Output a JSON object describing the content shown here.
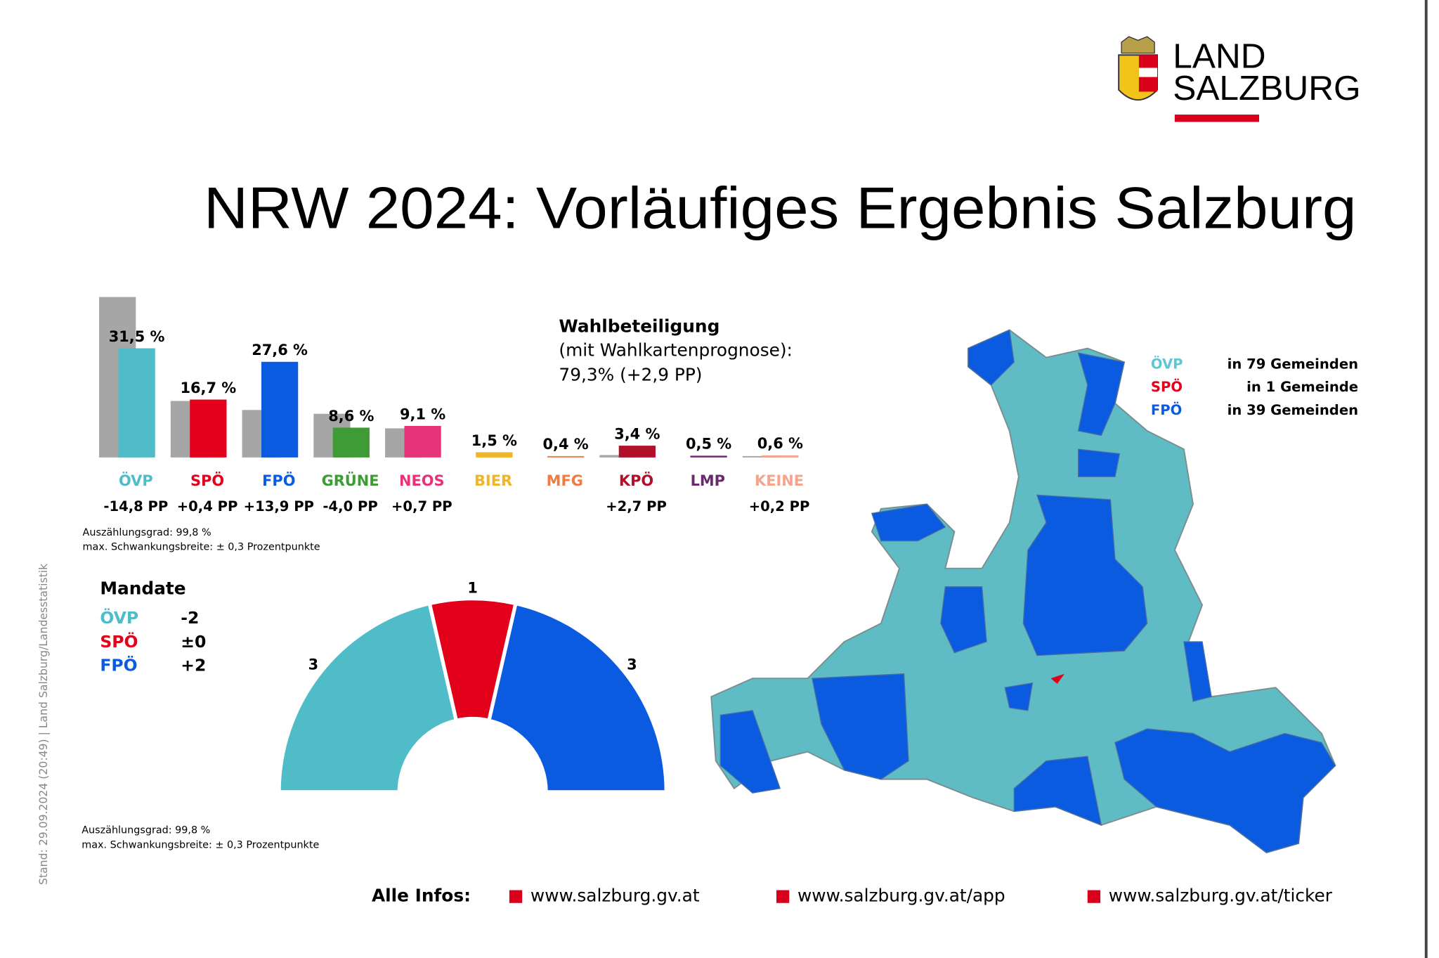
{
  "header": {
    "logo_line1": "LAND",
    "logo_line2": "SALZBURG",
    "title": "NRW 2024: Vorläufiges Ergebnis Salzburg"
  },
  "side_note": "Stand: 29.09.2024 (20:49) | Land Salzburg/Landesstatistik",
  "turnout": {
    "title": "Wahlbeteiligung",
    "subtitle": "(mit Wahlkartenprognose):",
    "value": "79,3% (+2,9 PP)"
  },
  "chart_data": [
    {
      "type": "bar",
      "categories": [
        "ÖVP",
        "SPÖ",
        "FPÖ",
        "GRÜNE",
        "NEOS",
        "BIER",
        "MFG",
        "KPÖ",
        "LMP",
        "KEINE"
      ],
      "series": [
        {
          "color": "#a6a6a6",
          "values": [
            46.3,
            16.3,
            13.7,
            12.6,
            8.4,
            null,
            null,
            0.7,
            null,
            0.4
          ]
        },
        {
          "colors": [
            "#4fbcc8",
            "#e3001b",
            "#0a5be0",
            "#3e9b35",
            "#e6337a",
            "#f0b429",
            "#f07c44",
            "#b0102a",
            "#6b2a6b",
            "#f3a58d"
          ],
          "values": [
            31.5,
            16.7,
            27.6,
            8.6,
            9.1,
            1.5,
            0.4,
            3.4,
            0.5,
            0.6
          ],
          "value_labels": [
            "31,5 %",
            "16,7 %",
            "27,6 %",
            "8,6 %",
            "9,1 %",
            "1,5 %",
            "0,4 %",
            "3,4 %",
            "0,5 %",
            "0,6 %"
          ]
        }
      ],
      "change_labels": [
        "-14,8 PP",
        "+0,4 PP",
        "+13,9 PP",
        "-4,0 PP",
        "+0,7 PP",
        null,
        null,
        "+2,7 PP",
        null,
        "+0,2 PP"
      ],
      "notes": [
        "Auszählungsgrad: 99,8 %",
        "max. Schwankungsbreite: ± 0,3 Prozentpunkte"
      ]
    },
    {
      "type": "semicircle",
      "title": "Mandate",
      "categories": [
        "ÖVP",
        "SPÖ",
        "FPÖ"
      ],
      "values": [
        3,
        1,
        3
      ],
      "colors": [
        "#4fbcc8",
        "#e3001b",
        "#0a5be0"
      ],
      "changes": [
        "-2",
        "±0",
        "+2"
      ],
      "notes": [
        "Auszählungsgrad: 99,8 %",
        "max. Schwankungsbreite: ± 0,3 Prozentpunkte"
      ]
    }
  ],
  "map": {
    "legend": [
      {
        "party": "ÖVP",
        "label": "in 79 Gemeinden",
        "color": "#5fc6d3"
      },
      {
        "party": "SPÖ",
        "label": "in 1 Gemeinde",
        "color": "#e3001b"
      },
      {
        "party": "FPÖ",
        "label": "in 39 Gemeinden",
        "color": "#0a5be0"
      }
    ]
  },
  "footer": {
    "label": "Alle Infos:",
    "links": [
      "www.salzburg.gv.at",
      "www.salzburg.gv.at/app",
      "www.salzburg.gv.at/ticker"
    ]
  }
}
